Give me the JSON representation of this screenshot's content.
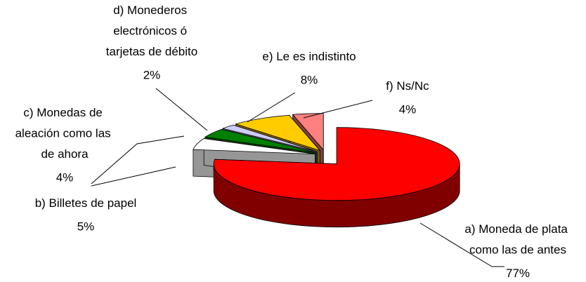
{
  "chart_data": {
    "type": "pie3d",
    "categories": [
      "a) Moneda de plata como las de antes",
      "b) Billetes de papel",
      "c) Monedas de aleación como las de ahora",
      "d) Monederos electrónicos ó tarjetas de débito",
      "e) Le es indistinto",
      "f) Ns/Nc"
    ],
    "values": [
      77,
      5,
      4,
      2,
      8,
      4
    ],
    "value_labels": [
      "77%",
      "5%",
      "4%",
      "2%",
      "8%",
      "4%"
    ],
    "colors": [
      "#ff0000",
      "#ffffff",
      "#008000",
      "#ccccff",
      "#ffcc00",
      "#ff8080"
    ]
  }
}
